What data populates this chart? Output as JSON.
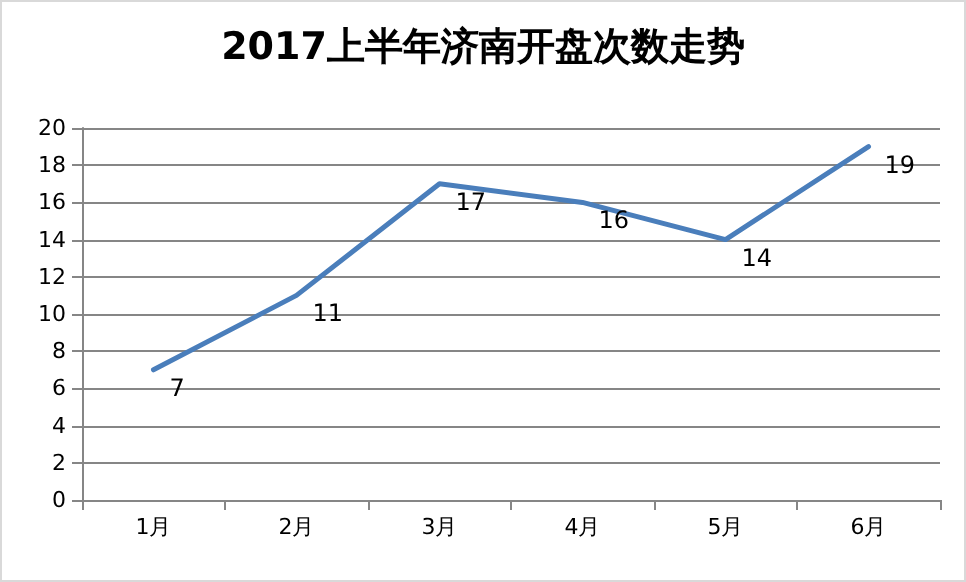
{
  "chart_data": {
    "type": "line",
    "title": "2017上半年济南开盘次数走势",
    "categories": [
      "1月",
      "2月",
      "3月",
      "4月",
      "5月",
      "6月"
    ],
    "series": [
      {
        "color": "#4a7ebb",
        "values": [
          7,
          11,
          17,
          16,
          14,
          19
        ]
      }
    ],
    "ylim": [
      0,
      20
    ],
    "yticks": [
      0,
      2,
      4,
      6,
      8,
      10,
      12,
      14,
      16,
      18,
      20
    ],
    "grid": "y",
    "marker": "none",
    "line_style": "solid",
    "data_labels": true
  }
}
